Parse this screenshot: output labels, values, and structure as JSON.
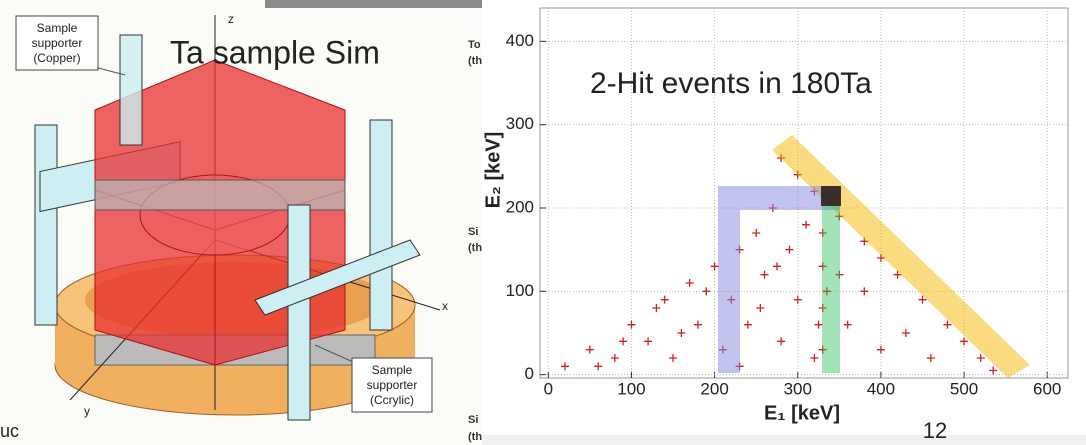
{
  "diagram": {
    "title": "Ta sample Sim",
    "axes": {
      "z": "z",
      "x": "x",
      "y": "y"
    },
    "top_label": [
      "Sample",
      "supporter",
      "(Copper)"
    ],
    "bottom_label": [
      "Sample",
      "supporter",
      "(Ccrylic)"
    ]
  },
  "cropped_text": {
    "block1": [
      "To",
      "(th"
    ],
    "block2": [
      "Si",
      "(th"
    ],
    "block3": [
      "Si",
      "(th"
    ],
    "left_edge": "uc"
  },
  "page_number": "12",
  "chart_data": {
    "type": "scatter",
    "title": "2-Hit events in 180Ta",
    "x_label": "E₁ [keV]",
    "y_label": "E₂ [keV]",
    "color": "#d42020",
    "xlim": [
      -10,
      625
    ],
    "ylim": [
      -4,
      440
    ],
    "xticks": [
      0,
      100,
      200,
      300,
      400,
      500,
      600
    ],
    "yticks": [
      0,
      100,
      200,
      300,
      400
    ],
    "grid": true,
    "x": [
      20,
      50,
      80,
      100,
      120,
      140,
      150,
      170,
      180,
      200,
      210,
      220,
      230,
      240,
      250,
      260,
      270,
      280,
      290,
      300,
      310,
      320,
      230,
      190,
      160,
      130,
      90,
      60,
      255,
      275,
      280,
      300,
      320,
      350,
      380,
      400,
      420,
      450,
      480,
      500,
      520,
      535,
      330,
      330,
      330,
      330,
      335,
      325,
      360,
      380,
      400,
      430,
      460,
      350
    ],
    "y": [
      10,
      30,
      20,
      60,
      40,
      90,
      20,
      110,
      60,
      130,
      30,
      90,
      150,
      60,
      170,
      120,
      200,
      40,
      150,
      90,
      180,
      20,
      10,
      100,
      50,
      80,
      40,
      10,
      80,
      130,
      260,
      240,
      220,
      190,
      160,
      140,
      120,
      90,
      60,
      40,
      20,
      5,
      30,
      80,
      130,
      170,
      100,
      60,
      60,
      100,
      30,
      50,
      20,
      120
    ]
  }
}
